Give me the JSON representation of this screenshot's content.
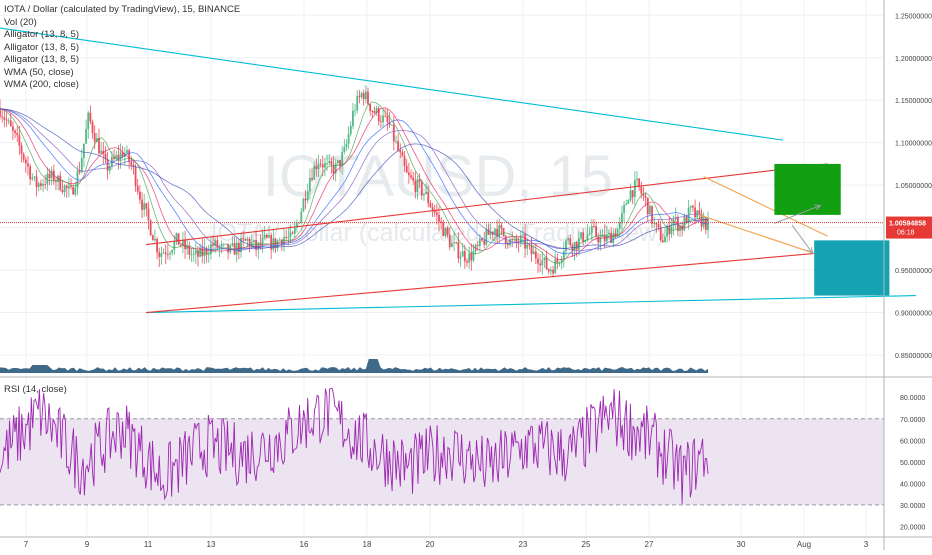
{
  "header": {
    "title": "IOTA / Dollar (calculated by TradingView), 15, BINANCE",
    "indicators": [
      "Vol (20)",
      "Alligator (13, 8, 5)",
      "Alligator (13, 8, 5)",
      "Alligator (13, 8, 5)",
      "WMA (50, close)",
      "WMA (200, close)"
    ]
  },
  "watermark": {
    "symbol": "IOTAUSD, 15",
    "subtitle": "IOTA / Dollar (calculated by TradingView)"
  },
  "colors": {
    "candle_up": "#53b987",
    "candle_down": "#eb4d5c",
    "trendline_cyan": "#00bcd4",
    "trendline_red": "#e53935",
    "trendline_orange": "#f5a04a",
    "target_green": "#12a012",
    "target_teal": "#15a3b3",
    "rsi_line": "#9c27b0",
    "rsi_band": "#ede4f2",
    "price_label_bg": "#e53935",
    "volume_fill": "#1c4f73"
  },
  "chart_data": [
    {
      "type": "candlestick",
      "title": "IOTA / Dollar (calculated by TradingView), 15, BINANCE",
      "x_tick_labels": [
        "7",
        "9",
        "11",
        "13",
        "16",
        "18",
        "20",
        "23",
        "25",
        "27",
        "30",
        "Aug",
        "3"
      ],
      "y_tick_labels": [
        "1.25000000",
        "1.20000000",
        "1.15000000",
        "1.10000000",
        "1.05000000",
        "1.00000000",
        "0.95000000",
        "0.90000000",
        "0.85000000"
      ],
      "ylim": [
        0.83,
        1.268
      ],
      "last_price": "1.00594858",
      "countdown": "06:18",
      "price_path": [
        [
          0,
          1.14
        ],
        [
          2,
          1.1
        ],
        [
          4,
          1.05
        ],
        [
          6,
          1.06
        ],
        [
          8,
          1.04
        ],
        [
          9,
          1.07
        ],
        [
          10,
          1.13
        ],
        [
          11,
          1.1
        ],
        [
          12,
          1.07
        ],
        [
          13,
          1.08
        ],
        [
          14,
          1.09
        ],
        [
          15,
          1.07
        ],
        [
          16,
          1.03
        ],
        [
          17,
          1.0
        ],
        [
          18,
          0.97
        ],
        [
          19,
          0.975
        ],
        [
          20,
          0.985
        ],
        [
          21,
          0.975
        ],
        [
          22,
          0.965
        ],
        [
          23,
          0.97
        ],
        [
          24,
          0.98
        ],
        [
          25,
          0.975
        ],
        [
          26,
          0.972
        ],
        [
          27,
          0.978
        ],
        [
          28,
          0.985
        ],
        [
          29,
          0.975
        ],
        [
          30,
          0.985
        ],
        [
          31,
          0.98
        ],
        [
          32,
          0.99
        ],
        [
          33,
          0.985
        ],
        [
          34,
          1.02
        ],
        [
          35,
          1.06
        ],
        [
          36,
          1.08
        ],
        [
          37,
          1.07
        ],
        [
          38,
          1.07
        ],
        [
          39,
          1.09
        ],
        [
          40,
          1.14
        ],
        [
          41,
          1.16
        ],
        [
          42,
          1.14
        ],
        [
          43,
          1.13
        ],
        [
          44,
          1.12
        ],
        [
          45,
          1.09
        ],
        [
          46,
          1.06
        ],
        [
          47,
          1.05
        ],
        [
          48,
          1.04
        ],
        [
          49,
          1.02
        ],
        [
          50,
          1.0
        ],
        [
          51,
          0.98
        ],
        [
          52,
          0.97
        ],
        [
          53,
          0.965
        ],
        [
          54,
          0.975
        ],
        [
          55,
          0.99
        ],
        [
          56,
          1.0
        ],
        [
          57,
          0.99
        ],
        [
          58,
          0.98
        ],
        [
          59,
          0.985
        ],
        [
          60,
          0.97
        ],
        [
          61,
          0.965
        ],
        [
          62,
          0.95
        ],
        [
          63,
          0.96
        ],
        [
          64,
          0.985
        ],
        [
          65,
          0.98
        ],
        [
          66,
          0.99
        ],
        [
          67,
          0.995
        ],
        [
          68,
          0.985
        ],
        [
          69,
          0.99
        ],
        [
          70,
          1.0
        ],
        [
          71,
          1.04
        ],
        [
          72,
          1.05
        ],
        [
          73,
          1.03
        ],
        [
          74,
          1.0
        ],
        [
          75,
          0.985
        ],
        [
          76,
          1.01
        ],
        [
          77,
          1.0
        ],
        [
          78,
          1.02
        ],
        [
          79,
          1.01
        ],
        [
          80,
          1.003
        ]
      ],
      "trendlines": [
        {
          "name": "cyan-upper",
          "color": "cyan",
          "points": [
            [
              0,
              1.235
            ],
            [
              88.5,
              1.103
            ]
          ]
        },
        {
          "name": "cyan-lower",
          "color": "cyan",
          "points": [
            [
              16.5,
              0.9
            ],
            [
              103.5,
              0.92
            ]
          ]
        },
        {
          "name": "red-upper",
          "color": "red",
          "points": [
            [
              16.5,
              0.98
            ],
            [
              93.5,
              1.075
            ]
          ]
        },
        {
          "name": "red-lower",
          "color": "red",
          "points": [
            [
              16.5,
              0.9
            ],
            [
              92.5,
              0.97
            ]
          ]
        },
        {
          "name": "orange-upper",
          "color": "orange",
          "points": [
            [
              79.5,
              1.06
            ],
            [
              93.5,
              0.99
            ]
          ]
        },
        {
          "name": "orange-lower",
          "color": "orange",
          "points": [
            [
              79,
              1.015
            ],
            [
              92.5,
              0.968
            ]
          ]
        }
      ],
      "projection_arrows": [
        {
          "from": [
            87.5,
            1.005
          ],
          "to": [
            92.7,
            1.026
          ]
        },
        {
          "from": [
            89.5,
            1.003
          ],
          "to": [
            91.8,
            0.97
          ]
        }
      ],
      "target_boxes": [
        {
          "name": "target-up",
          "color": "green",
          "x": [
            87.5,
            95
          ],
          "y": [
            1.015,
            1.075
          ]
        },
        {
          "name": "target-down",
          "color": "teal",
          "x": [
            92,
            100.5
          ],
          "y": [
            0.92,
            0.985
          ]
        }
      ]
    },
    {
      "type": "area",
      "name": "Vol (20)",
      "x_range": [
        0,
        87
      ]
    },
    {
      "type": "line",
      "title": "RSI (14, close)",
      "series": [
        {
          "name": "RSI (14, close)"
        }
      ],
      "y_tick_labels": [
        "80.0000",
        "70.0000",
        "60.0000",
        "50.0000",
        "40.0000",
        "30.0000",
        "20.0000"
      ],
      "ylim": [
        16,
        88
      ],
      "bands": {
        "upper": 70,
        "lower": 30
      },
      "x_range": [
        0,
        87
      ],
      "anchors": [
        [
          0,
          52
        ],
        [
          5,
          73
        ],
        [
          10,
          48
        ],
        [
          15,
          66
        ],
        [
          20,
          42
        ],
        [
          25,
          58
        ],
        [
          30,
          53
        ],
        [
          35,
          61
        ],
        [
          38,
          70
        ],
        [
          40,
          74
        ],
        [
          45,
          58
        ],
        [
          50,
          47
        ],
        [
          55,
          56
        ],
        [
          60,
          47
        ],
        [
          65,
          58
        ],
        [
          70,
          53
        ],
        [
          75,
          72
        ],
        [
          80,
          60
        ],
        [
          84,
          44
        ],
        [
          87,
          55
        ]
      ]
    }
  ]
}
